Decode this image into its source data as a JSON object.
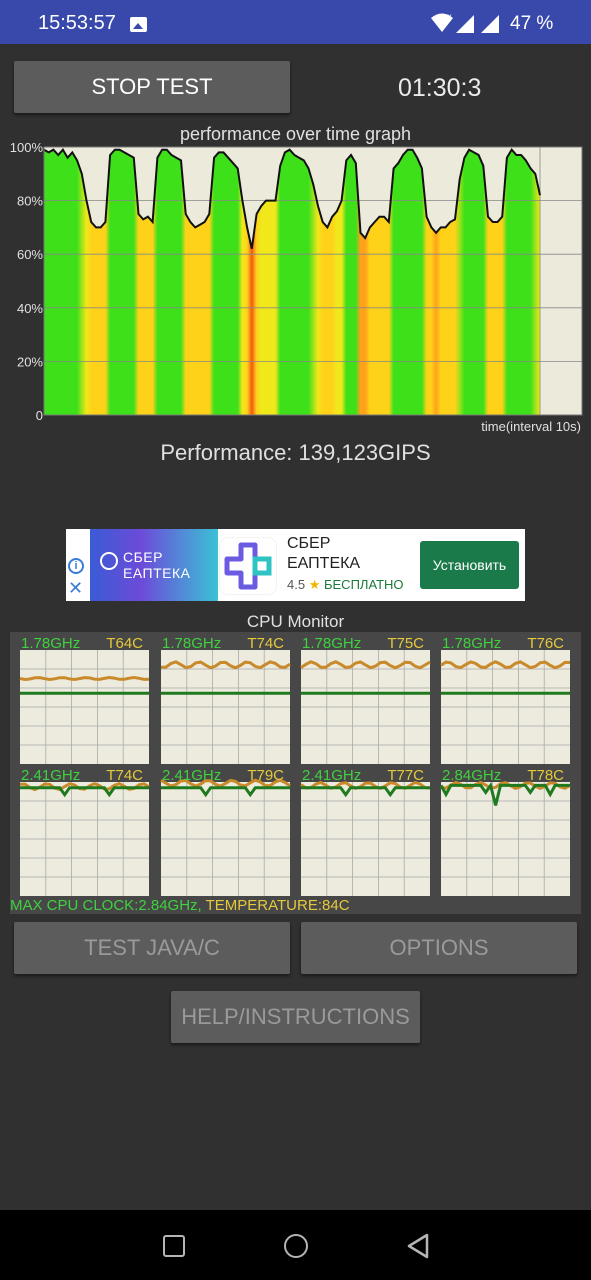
{
  "statusbar": {
    "time": "15:53:57",
    "battery": "47 %"
  },
  "controls": {
    "stop_label": "STOP TEST",
    "timer": "01:30:3"
  },
  "graph": {
    "title": "performance over time graph",
    "xlabel": "time(interval 10s)",
    "y_ticks": [
      "100%",
      "80%",
      "60%",
      "40%",
      "20%",
      "0"
    ]
  },
  "performance": {
    "text": "Performance: 139,123GIPS"
  },
  "ad": {
    "brand": "СБЕР ЕАПТЕКА",
    "title": "СБЕР ЕАПТЕКА",
    "title_line1": "СБЕР",
    "title_line2": "ЕАПТЕКА",
    "rating": "4.5",
    "free": "БЕСПЛАТНО",
    "install": "Установить"
  },
  "cpu_monitor": {
    "title": "CPU Monitor",
    "cores": [
      {
        "freq": "1.78GHz",
        "temp": "T64C"
      },
      {
        "freq": "1.78GHz",
        "temp": "T74C"
      },
      {
        "freq": "1.78GHz",
        "temp": "T75C"
      },
      {
        "freq": "1.78GHz",
        "temp": "T76C"
      },
      {
        "freq": "2.41GHz",
        "temp": "T74C"
      },
      {
        "freq": "2.41GHz",
        "temp": "T79C"
      },
      {
        "freq": "2.41GHz",
        "temp": "T77C"
      },
      {
        "freq": "2.84GHz",
        "temp": "T78C"
      }
    ],
    "max_clock": "MAX CPU CLOCK:2.84GHz,",
    "temperature": " TEMPERATURE:84C"
  },
  "buttons": {
    "test": "TEST JAVA/C",
    "options": "OPTIONS",
    "help": "HELP/INSTRUCTIONS"
  },
  "chart_data": {
    "type": "area",
    "title": "performance over time graph",
    "xlabel": "time(interval 10s)",
    "ylabel": "",
    "ylim": [
      0,
      100
    ],
    "y_ticks": [
      "100%",
      "80%",
      "60%",
      "40%",
      "20%",
      "0"
    ],
    "grid": true,
    "series": [
      {
        "values": [
          99,
          98,
          99,
          97,
          99,
          96,
          98,
          95,
          90,
          80,
          72,
          70,
          70,
          72,
          97,
          99,
          99,
          98,
          97,
          96,
          75,
          73,
          74,
          72,
          96,
          99,
          99,
          97,
          96,
          95,
          75,
          72,
          70,
          71,
          72,
          75,
          96,
          98,
          98,
          96,
          94,
          92,
          80,
          70,
          62,
          75,
          78,
          80,
          80,
          80,
          93,
          98,
          99,
          97,
          96,
          95,
          92,
          86,
          78,
          72,
          70,
          74,
          76,
          80,
          95,
          97,
          94,
          68,
          66,
          70,
          72,
          74,
          74,
          72,
          92,
          94,
          97,
          99,
          99,
          96,
          92,
          74,
          70,
          68,
          70,
          70,
          72,
          73,
          88,
          96,
          99,
          98,
          97,
          93,
          74,
          72,
          72,
          74,
          96,
          99,
          97,
          97,
          95,
          92,
          90,
          82
        ]
      }
    ]
  }
}
